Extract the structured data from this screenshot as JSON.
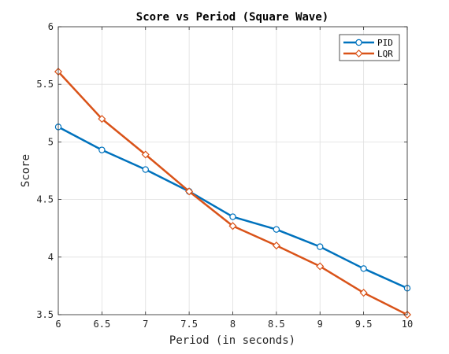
{
  "chart_data": {
    "type": "line",
    "title": "Score vs Period (Square Wave)",
    "xlabel": "Period (in seconds)",
    "ylabel": "Score",
    "xlim": [
      6,
      10
    ],
    "ylim": [
      3.5,
      6
    ],
    "xticks": [
      6,
      6.5,
      7,
      7.5,
      8,
      8.5,
      9,
      9.5,
      10
    ],
    "yticks": [
      3.5,
      4,
      4.5,
      5,
      5.5,
      6
    ],
    "xtick_labels": [
      "6",
      "6.5",
      "7",
      "7.5",
      "8",
      "8.5",
      "9",
      "9.5",
      "10"
    ],
    "ytick_labels": [
      "3.5",
      "4",
      "4.5",
      "5",
      "5.5",
      "6"
    ],
    "grid": true,
    "legend_position": "top-right",
    "x": [
      6,
      6.5,
      7,
      7.5,
      8,
      8.5,
      9,
      9.5,
      10
    ],
    "series": [
      {
        "name": "PID",
        "color": "#0072BD",
        "marker": "circle",
        "values": [
          5.13,
          4.93,
          4.76,
          4.57,
          4.35,
          4.24,
          4.09,
          3.9,
          3.73
        ]
      },
      {
        "name": "LQR",
        "color": "#D95319",
        "marker": "diamond",
        "values": [
          5.61,
          5.2,
          4.89,
          4.57,
          4.27,
          4.1,
          3.92,
          3.69,
          3.5
        ]
      }
    ]
  }
}
